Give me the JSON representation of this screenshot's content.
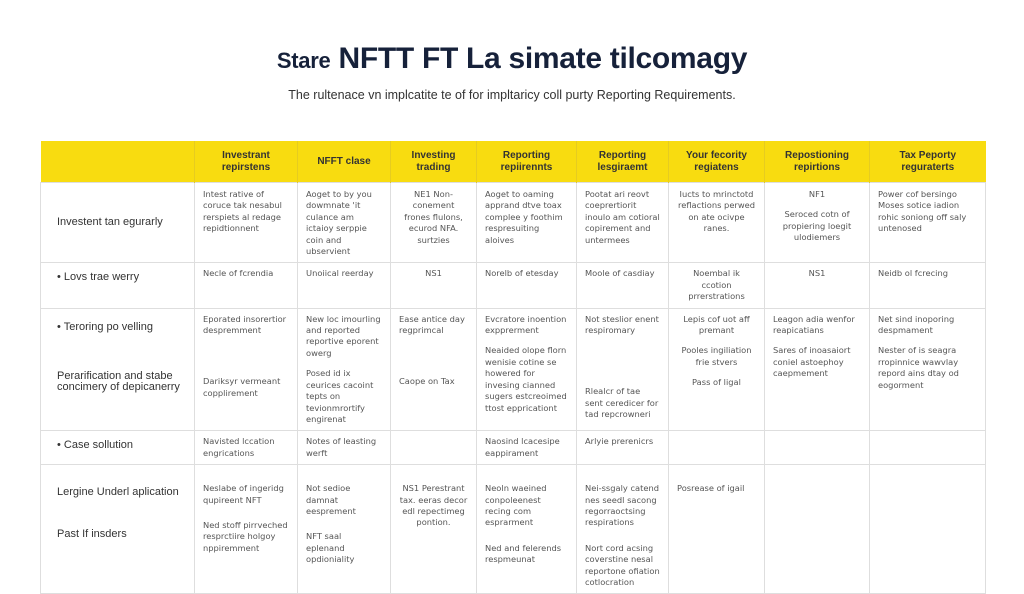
{
  "title": {
    "prefix": "Stare",
    "main": "NFTT FT La simate tilcomagy"
  },
  "subtitle": "The rultenace vn implcatite te of for impltaricy coll purty Reporting Requirements.",
  "colors": {
    "header_bg": "#f8dc10",
    "title": "#16213a",
    "border": "#dedede"
  },
  "table": {
    "headers": [
      "",
      "Investrant repirstens",
      "NFFT clase",
      "Investing trading",
      "Reporting repiirennts",
      "Reporting lesgiraemt",
      "Your fecority regiatens",
      "Repostioning repirtions",
      "Tax Peporty reguraterts"
    ],
    "rows": [
      {
        "label": [
          "Investent tan egurarly"
        ],
        "cells": [
          [
            "Intest rative of coruce tak nesabul rerspiets al redage repidtionnent"
          ],
          [
            "Aoget to by you dowmnate 'it culance am ictaioy serppie coin and ubservient"
          ],
          [
            "NE1 Non-conement frones flulons, ecurod NFA. surtzies"
          ],
          [
            "Aoget to oaming apprand dtve toax complee y foothim respresuiting aloives"
          ],
          [
            "Pootat ari reovt coeprertiorit inoulo am cotioral copirement and untermees"
          ],
          [
            "Iucts to mrinctotd reflactions perwed on ate ocivpe ranes."
          ],
          [
            "NF1",
            "Seroced cotn of propiering loegit ulodiemers"
          ],
          [
            "Power cof bersingo Moses sotice iadion rohic soniong off saly untenosed"
          ]
        ]
      },
      {
        "label": [
          "• Lovs trae werry"
        ],
        "cells": [
          [
            "Necle of fcrendia"
          ],
          [
            "Unoiical reerday"
          ],
          [
            "NS1"
          ],
          [
            "Norelb of etesday"
          ],
          [
            "Moole of casdiay"
          ],
          [
            "Noembal ik ccotion prrerstrations"
          ],
          [
            "NS1"
          ],
          [
            "Neidb ol fcrecing"
          ]
        ]
      },
      {
        "label": [
          "• Teroring po velling",
          "Perarification and stabe concimery of depicanerry"
        ],
        "cells": [
          [
            "Eporated insorertior despremment",
            "Dariksyr vermeant copplirement"
          ],
          [
            "New loc imourling and reported reportive eporent owerg",
            "Posed id ix ceurices cacoint tepts on tevionmrortify engirenat"
          ],
          [
            "Ease antice day regprimcal",
            "Caope on Tax"
          ],
          [
            "Evcratore inoention expprerment",
            "Neaided olope florn wenisie cotine se howered for invesing cianned sugers estcreoimed ttost eppricationt"
          ],
          [
            "Not steslior enent respiromary",
            "Rlealcr of tae sent ceredicer for tad repcrowneri"
          ],
          [
            "Lepis cof uot aff premant",
            "Pooles ingiliation frie stvers",
            "Pass of ligal"
          ],
          [
            "Leagon adia wenfor reapicatians",
            "Sares of inoasaiort coniel astoephoy caepmement"
          ],
          [
            "Net sind inoporing despmament",
            "Nester of is seagra rropinnice wawvlay repord ains dtay od eogorment"
          ]
        ]
      },
      {
        "label": [
          "• Case sollution"
        ],
        "cells": [
          [
            "Navisted lccation engrications"
          ],
          [
            "Notes of leasting werft"
          ],
          [],
          [
            "Naosind lcacesipe eappirament"
          ],
          [
            "Arlyie prerenicrs"
          ],
          [],
          [],
          []
        ]
      },
      {
        "label": [
          "Lergine Underl aplication",
          "Past If insders"
        ],
        "cells": [
          [
            "Neslabe of ingeridg qupireent NFT",
            "Ned stoff pirrveched resprctiire holgoy nppiremment"
          ],
          [
            "Not sedioe damnat eesprement",
            "NFT saal eplenand opdioniality"
          ],
          [
            "NS1 Perestrant tax. eeras decor edl repectimeg pontion."
          ],
          [
            "Neoln waeined conpoleenest recing com esprarment",
            "Ned and felerends respmeunat"
          ],
          [
            "Nei-ssgaly catend nes seedl sacong regorraoctsing respirations",
            "Nort cord acsing coverstine nesal reportone ofiation cotlocration"
          ],
          [
            "Posrease of igail"
          ],
          [],
          []
        ]
      }
    ]
  }
}
